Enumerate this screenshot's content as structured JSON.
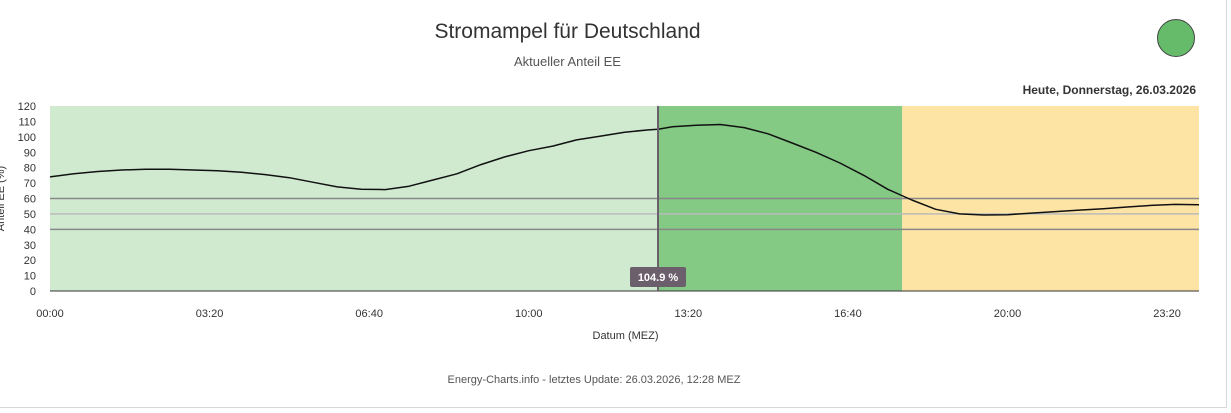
{
  "header": {
    "title": "Stromampel für Deutschland",
    "subtitle": "Aktueller Anteil EE",
    "status_color": "#66bb6a",
    "date_label": "Heute, Donnerstag, 26.03.2026"
  },
  "footer": {
    "source": "Energy-Charts.info - letztes Update: 26.03.2026, 12:28 MEZ"
  },
  "chart_data": {
    "type": "line",
    "title": "Stromampel für Deutschland",
    "subtitle": "Aktueller Anteil EE",
    "xlabel": "Datum (MEZ)",
    "ylabel": "Anteil EE (%)",
    "x_unit": "hours",
    "xlim": [
      0,
      24
    ],
    "ylim": [
      0,
      120
    ],
    "x_ticks": [
      {
        "x": 0,
        "label": "00:00"
      },
      {
        "x": 3.333,
        "label": "03:20"
      },
      {
        "x": 6.667,
        "label": "06:40"
      },
      {
        "x": 10,
        "label": "10:00"
      },
      {
        "x": 13.333,
        "label": "13:20"
      },
      {
        "x": 16.667,
        "label": "16:40"
      },
      {
        "x": 20,
        "label": "20:00"
      },
      {
        "x": 23.333,
        "label": "23:20"
      }
    ],
    "y_ticks": [
      0,
      10,
      20,
      30,
      40,
      50,
      60,
      70,
      80,
      90,
      100,
      110,
      120
    ],
    "bands": [
      {
        "x_from": 0,
        "x_to": 12.7,
        "color": "#d0ead0"
      },
      {
        "x_from": 12.7,
        "x_to": 17.8,
        "color": "#84c984"
      },
      {
        "x_from": 17.8,
        "x_to": 24,
        "color": "#fde4a5"
      }
    ],
    "threshold_lines": [
      {
        "y": 60,
        "color": "#888888"
      },
      {
        "y": 50,
        "color": "#bbbbbb"
      },
      {
        "y": 40,
        "color": "#888888"
      }
    ],
    "crosshair_x": 12.7,
    "tooltip_label": "104.9 %",
    "series": [
      {
        "color": "#111111",
        "x": [
          0,
          0.5,
          1,
          1.5,
          2,
          2.5,
          3,
          3.5,
          4,
          4.5,
          5,
          5.5,
          6,
          6.5,
          7,
          7.5,
          8,
          8.5,
          9,
          9.5,
          10,
          10.5,
          11,
          11.5,
          12,
          12.5,
          12.7,
          13,
          13.5,
          14,
          14.5,
          15,
          15.5,
          16,
          16.5,
          17,
          17.5,
          18,
          18.5,
          19,
          19.5,
          20,
          20.5,
          21,
          21.5,
          22,
          22.5,
          23,
          23.5,
          24
        ],
        "values": [
          74,
          76,
          77.5,
          78.5,
          79,
          79,
          78.5,
          78,
          77,
          75.5,
          73.5,
          70.5,
          67.5,
          66,
          65.8,
          68,
          72,
          76,
          82,
          87,
          91,
          94,
          98,
          100.5,
          103,
          104.5,
          104.9,
          106.5,
          107.5,
          108,
          106,
          102,
          96,
          90,
          83,
          75,
          66,
          59,
          53,
          50,
          49.3,
          49.5,
          50.5,
          51.5,
          52.5,
          53.3,
          54.5,
          55.5,
          56.2,
          56
        ]
      }
    ]
  }
}
